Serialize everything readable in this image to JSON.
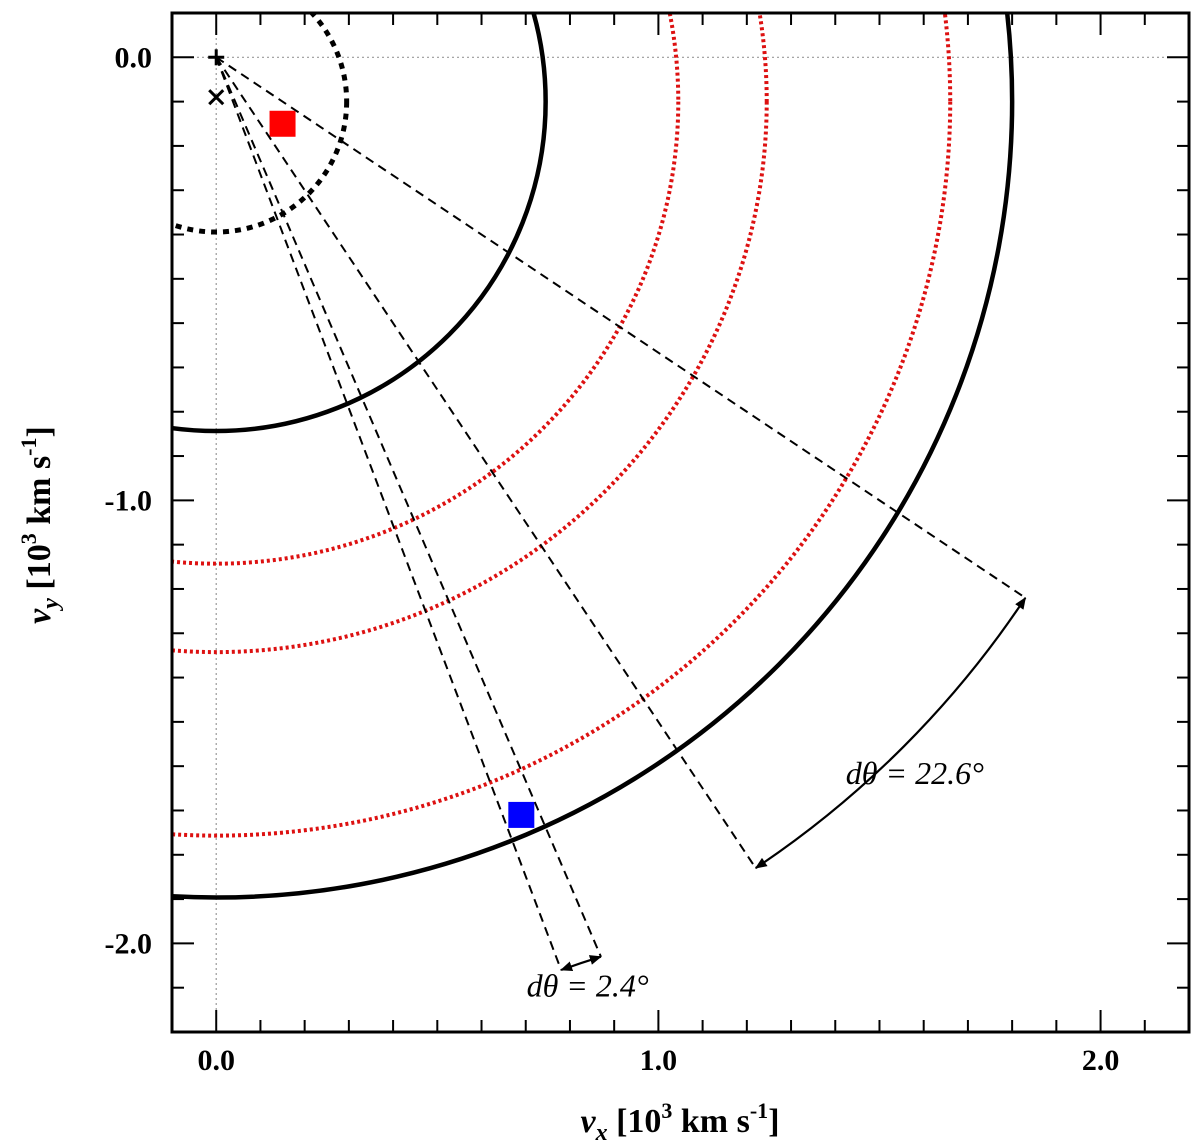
{
  "chart_data": {
    "type": "scatter",
    "title": "",
    "xlabel": {
      "symbol": "v",
      "sub": "x",
      "text": " [10",
      "sup": "3",
      "unit": " km s",
      "unit_sup": "-1",
      "close": "]"
    },
    "ylabel": {
      "symbol": "v",
      "sub": "y",
      "text": " [10",
      "sup": "3",
      "unit": " km s",
      "unit_sup": "-1",
      "close": "]"
    },
    "xlim": [
      -0.1,
      2.2
    ],
    "ylim": [
      -2.2,
      0.1
    ],
    "x_ticks": [
      {
        "value": 0.0,
        "label": "0.0"
      },
      {
        "value": 1.0,
        "label": "1.0"
      },
      {
        "value": 2.0,
        "label": "2.0"
      }
    ],
    "y_ticks": [
      {
        "value": 0.0,
        "label": "0.0"
      },
      {
        "value": -1.0,
        "label": "-1.0"
      },
      {
        "value": -2.0,
        "label": "-2.0"
      }
    ],
    "minor_tick_step": 0.1,
    "zero_reference_lines": true,
    "circles": [
      {
        "name": "inner-dotted-circle",
        "cx": 0.0,
        "cy": -0.1,
        "r": 0.295,
        "style": "dotted",
        "color": "#000000"
      },
      {
        "name": "inner-solid-circle",
        "cx": 0.0,
        "cy": -0.1,
        "r": 0.745,
        "style": "solid",
        "color": "#000000"
      },
      {
        "name": "red-arc-1",
        "cx": 0.0,
        "cy": -0.1,
        "r": 1.045,
        "style": "dotted",
        "color": "#dd1111"
      },
      {
        "name": "red-arc-2",
        "cx": 0.0,
        "cy": -0.1,
        "r": 1.245,
        "style": "dotted",
        "color": "#dd1111"
      },
      {
        "name": "red-arc-3",
        "cx": 0.0,
        "cy": -0.1,
        "r": 1.66,
        "style": "dotted",
        "color": "#dd1111"
      },
      {
        "name": "outer-solid-circle",
        "cx": 0.0,
        "cy": -0.1,
        "r": 1.8,
        "style": "solid",
        "color": "#000000"
      }
    ],
    "points": [
      {
        "name": "plus-marker",
        "x": 0.0,
        "y": 0.0,
        "marker": "plus",
        "color": "#000000"
      },
      {
        "name": "cross-marker",
        "x": 0.0,
        "y": -0.09,
        "marker": "cross",
        "color": "#000000"
      },
      {
        "name": "red-square",
        "x": 0.15,
        "y": -0.15,
        "marker": "square",
        "color": "#ff0000"
      },
      {
        "name": "blue-square",
        "x": 0.69,
        "y": -1.71,
        "marker": "square",
        "color": "#0000ff"
      }
    ],
    "rays": [
      {
        "x1": 0.0,
        "y1": 0.0,
        "x2": 1.83,
        "y2": -1.22
      },
      {
        "x1": 0.0,
        "y1": 0.0,
        "x2": 1.22,
        "y2": -1.83
      },
      {
        "x1": 0.0,
        "y1": 0.0,
        "x2": 0.78,
        "y2": -2.06
      },
      {
        "x1": 0.0,
        "y1": 0.0,
        "x2": 0.87,
        "y2": -2.03
      }
    ],
    "angle_arrows": [
      {
        "name": "big-angle-arrow",
        "x1": 1.83,
        "y1": -1.22,
        "x2": 1.22,
        "y2": -1.83,
        "r": 2.2,
        "label": "dθ = 22.6°",
        "label_x": 1.58,
        "label_y": -1.64
      },
      {
        "name": "small-angle-arrow",
        "x1": 0.78,
        "y1": -2.06,
        "x2": 0.87,
        "y2": -2.03,
        "r": 2.2,
        "label": "dθ = 2.4°",
        "label_x": 0.84,
        "label_y": -2.12
      }
    ]
  }
}
